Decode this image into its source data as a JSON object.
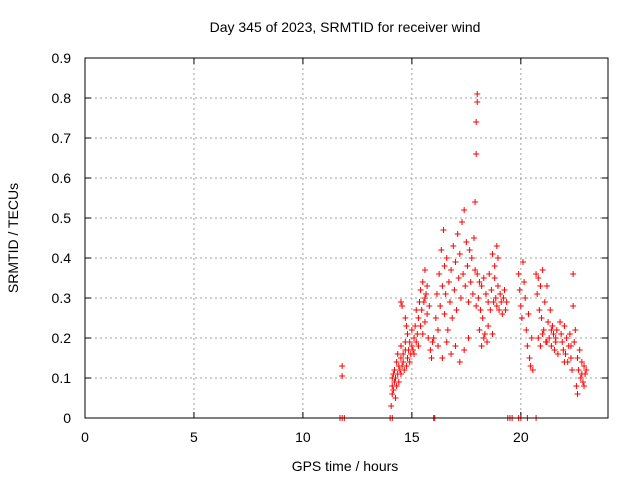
{
  "chart_data": {
    "type": "scatter",
    "title": "Day 345 of 2023, SRMTID for receiver wind",
    "xlabel": "GPS time / hours",
    "ylabel": "SRMTID / TECUs",
    "xlim": [
      0,
      24
    ],
    "ylim": [
      0,
      0.9
    ],
    "xticks": [
      0,
      5,
      10,
      15,
      20
    ],
    "yticks": [
      0,
      0.1,
      0.2,
      0.3,
      0.4,
      0.5,
      0.6,
      0.7,
      0.8,
      0.9
    ],
    "grid": true,
    "marker": "+",
    "color": "#ff0000",
    "series": [
      {
        "name": "SRMTID",
        "points": [
          [
            11.7,
            0
          ],
          [
            11.8,
            0
          ],
          [
            11.9,
            0
          ],
          [
            11.8,
            0.13
          ],
          [
            11.8,
            0.105
          ],
          [
            14.0,
            0
          ],
          [
            14.1,
            0
          ],
          [
            16.0,
            0
          ],
          [
            16.05,
            0
          ],
          [
            19.4,
            0
          ],
          [
            19.5,
            0
          ],
          [
            19.6,
            0
          ],
          [
            19.9,
            0
          ],
          [
            20.0,
            0
          ],
          [
            20.3,
            0
          ],
          [
            20.7,
            0
          ],
          [
            14.05,
            0.03
          ],
          [
            14.1,
            0.06
          ],
          [
            14.1,
            0.08
          ],
          [
            14.1,
            0.1
          ],
          [
            14.15,
            0.11
          ],
          [
            14.15,
            0.07
          ],
          [
            14.2,
            0.09
          ],
          [
            14.2,
            0.12
          ],
          [
            14.25,
            0.05
          ],
          [
            14.25,
            0.1
          ],
          [
            14.3,
            0.14
          ],
          [
            14.3,
            0.08
          ],
          [
            14.35,
            0.11
          ],
          [
            14.35,
            0.16
          ],
          [
            14.4,
            0.13
          ],
          [
            14.4,
            0.09
          ],
          [
            14.45,
            0.12
          ],
          [
            14.5,
            0.18
          ],
          [
            14.5,
            0.15
          ],
          [
            14.5,
            0.11
          ],
          [
            14.55,
            0.13
          ],
          [
            14.6,
            0.16
          ],
          [
            14.6,
            0.14
          ],
          [
            14.65,
            0.12
          ],
          [
            14.7,
            0.17
          ],
          [
            14.7,
            0.19
          ],
          [
            14.75,
            0.13
          ],
          [
            14.8,
            0.15
          ],
          [
            14.8,
            0.21
          ],
          [
            14.85,
            0.17
          ],
          [
            14.9,
            0.14
          ],
          [
            14.9,
            0.19
          ],
          [
            14.95,
            0.16
          ],
          [
            15.0,
            0.18
          ],
          [
            15.0,
            0.22
          ],
          [
            15.05,
            0.17
          ],
          [
            15.1,
            0.2
          ],
          [
            15.1,
            0.16
          ],
          [
            15.15,
            0.23
          ],
          [
            15.2,
            0.19
          ],
          [
            15.2,
            0.27
          ],
          [
            15.25,
            0.21
          ],
          [
            15.3,
            0.25
          ],
          [
            15.3,
            0.18
          ],
          [
            15.35,
            0.29
          ],
          [
            15.4,
            0.23
          ],
          [
            15.4,
            0.32
          ],
          [
            15.45,
            0.27
          ],
          [
            15.5,
            0.21
          ],
          [
            15.5,
            0.34
          ],
          [
            15.55,
            0.29
          ],
          [
            15.6,
            0.24
          ],
          [
            15.6,
            0.37
          ],
          [
            15.65,
            0.31
          ],
          [
            15.7,
            0.26
          ],
          [
            15.75,
            0.2
          ],
          [
            15.8,
            0.28
          ],
          [
            15.85,
            0.17
          ],
          [
            15.9,
            0.15
          ],
          [
            15.95,
            0.19
          ],
          [
            14.5,
            0.29
          ],
          [
            14.55,
            0.28
          ],
          [
            14.7,
            0.25
          ],
          [
            14.75,
            0.23
          ],
          [
            15.6,
            0.3
          ],
          [
            15.7,
            0.33
          ],
          [
            16.0,
            0.2
          ],
          [
            16.1,
            0.25
          ],
          [
            16.15,
            0.31
          ],
          [
            16.2,
            0.22
          ],
          [
            16.25,
            0.36
          ],
          [
            16.3,
            0.28
          ],
          [
            16.35,
            0.42
          ],
          [
            16.4,
            0.33
          ],
          [
            16.45,
            0.47
          ],
          [
            16.5,
            0.38
          ],
          [
            16.5,
            0.26
          ],
          [
            16.55,
            0.31
          ],
          [
            16.6,
            0.4
          ],
          [
            16.65,
            0.22
          ],
          [
            16.7,
            0.34
          ],
          [
            16.75,
            0.29
          ],
          [
            16.8,
            0.37
          ],
          [
            16.85,
            0.25
          ],
          [
            16.9,
            0.43
          ],
          [
            16.95,
            0.32
          ],
          [
            17.0,
            0.39
          ],
          [
            17.05,
            0.27
          ],
          [
            17.1,
            0.46
          ],
          [
            17.15,
            0.35
          ],
          [
            17.2,
            0.41
          ],
          [
            17.25,
            0.3
          ],
          [
            17.3,
            0.49
          ],
          [
            17.35,
            0.36
          ],
          [
            17.4,
            0.52
          ],
          [
            17.45,
            0.33
          ],
          [
            17.5,
            0.44
          ],
          [
            17.55,
            0.38
          ],
          [
            17.6,
            0.29
          ],
          [
            17.65,
            0.42
          ],
          [
            17.7,
            0.34
          ],
          [
            17.75,
            0.4
          ],
          [
            17.8,
            0.31
          ],
          [
            17.85,
            0.45
          ],
          [
            17.9,
            0.37
          ],
          [
            17.95,
            0.28
          ],
          [
            16.2,
            0.18
          ],
          [
            16.4,
            0.15
          ],
          [
            16.6,
            0.19
          ],
          [
            16.8,
            0.16
          ],
          [
            17.0,
            0.18
          ],
          [
            17.2,
            0.14
          ],
          [
            17.4,
            0.17
          ],
          [
            17.6,
            0.2
          ],
          [
            18.0,
            0.81
          ],
          [
            18.0,
            0.79
          ],
          [
            17.95,
            0.74
          ],
          [
            17.95,
            0.66
          ],
          [
            17.9,
            0.54
          ],
          [
            18.0,
            0.36
          ],
          [
            18.05,
            0.3
          ],
          [
            18.1,
            0.34
          ],
          [
            18.15,
            0.27
          ],
          [
            18.2,
            0.33
          ],
          [
            18.25,
            0.25
          ],
          [
            18.3,
            0.35
          ],
          [
            18.35,
            0.21
          ],
          [
            18.4,
            0.31
          ],
          [
            18.45,
            0.19
          ],
          [
            18.5,
            0.29
          ],
          [
            18.55,
            0.36
          ],
          [
            18.6,
            0.27
          ],
          [
            18.65,
            0.32
          ],
          [
            18.7,
            0.41
          ],
          [
            18.75,
            0.29
          ],
          [
            18.8,
            0.35
          ],
          [
            18.85,
            0.3
          ],
          [
            18.9,
            0.28
          ],
          [
            18.95,
            0.33
          ],
          [
            19.0,
            0.27
          ],
          [
            19.05,
            0.31
          ],
          [
            19.1,
            0.29
          ],
          [
            19.15,
            0.26
          ],
          [
            19.2,
            0.3
          ],
          [
            19.25,
            0.32
          ],
          [
            19.3,
            0.27
          ],
          [
            19.35,
            0.29
          ],
          [
            18.1,
            0.22
          ],
          [
            18.2,
            0.18
          ],
          [
            18.3,
            0.2
          ],
          [
            18.5,
            0.23
          ],
          [
            18.7,
            0.21
          ],
          [
            18.8,
            0.38
          ],
          [
            18.9,
            0.43
          ],
          [
            18.95,
            0.4
          ],
          [
            19.9,
            0.36
          ],
          [
            19.95,
            0.32
          ],
          [
            20.0,
            0.28
          ],
          [
            20.05,
            0.25
          ],
          [
            20.1,
            0.39
          ],
          [
            20.15,
            0.34
          ],
          [
            20.2,
            0.3
          ],
          [
            20.25,
            0.22
          ],
          [
            20.3,
            0.18
          ],
          [
            20.35,
            0.26
          ],
          [
            20.4,
            0.15
          ],
          [
            20.45,
            0.13
          ],
          [
            20.5,
            0.2
          ],
          [
            20.55,
            0.12
          ],
          [
            20.7,
            0.36
          ],
          [
            20.75,
            0.31
          ],
          [
            20.8,
            0.35
          ],
          [
            20.85,
            0.27
          ],
          [
            20.9,
            0.33
          ],
          [
            20.95,
            0.25
          ],
          [
            21.0,
            0.37
          ],
          [
            21.05,
            0.22
          ],
          [
            21.1,
            0.29
          ],
          [
            21.15,
            0.19
          ],
          [
            21.2,
            0.33
          ],
          [
            21.25,
            0.24
          ],
          [
            21.3,
            0.2
          ],
          [
            21.35,
            0.27
          ],
          [
            21.4,
            0.18
          ],
          [
            21.45,
            0.23
          ],
          [
            21.5,
            0.21
          ],
          [
            21.55,
            0.17
          ],
          [
            21.6,
            0.2
          ],
          [
            21.65,
            0.22
          ],
          [
            21.7,
            0.16
          ],
          [
            20.8,
            0.2
          ],
          [
            20.9,
            0.18
          ],
          [
            21.0,
            0.21
          ],
          [
            21.2,
            0.19
          ],
          [
            21.4,
            0.22
          ],
          [
            21.6,
            0.19
          ],
          [
            21.8,
            0.24
          ],
          [
            21.85,
            0.21
          ],
          [
            21.9,
            0.19
          ],
          [
            21.95,
            0.17
          ],
          [
            22.0,
            0.23
          ],
          [
            22.05,
            0.16
          ],
          [
            22.1,
            0.2
          ],
          [
            22.15,
            0.14
          ],
          [
            22.2,
            0.18
          ],
          [
            22.25,
            0.21
          ],
          [
            22.3,
            0.15
          ],
          [
            22.35,
            0.12
          ],
          [
            22.4,
            0.36
          ],
          [
            22.4,
            0.28
          ],
          [
            22.45,
            0.19
          ],
          [
            22.5,
            0.22
          ],
          [
            22.55,
            0.08
          ],
          [
            22.6,
            0.06
          ],
          [
            22.65,
            0.12
          ],
          [
            22.7,
            0.17
          ],
          [
            22.75,
            0.1
          ],
          [
            22.8,
            0.14
          ],
          [
            22.85,
            0.09
          ],
          [
            22.9,
            0.13
          ],
          [
            22.95,
            0.11
          ],
          [
            23.0,
            0.12
          ],
          [
            22.0,
            0.14
          ],
          [
            22.3,
            0.18
          ],
          [
            22.6,
            0.15
          ],
          [
            22.8,
            0.11
          ],
          [
            22.9,
            0.08
          ]
        ]
      }
    ]
  }
}
